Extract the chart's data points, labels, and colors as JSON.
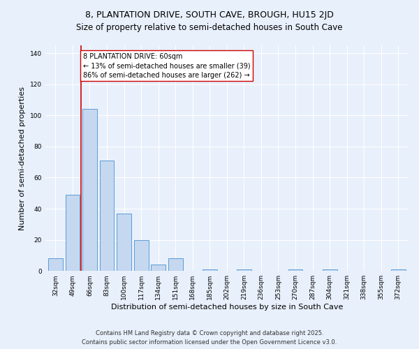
{
  "title": "8, PLANTATION DRIVE, SOUTH CAVE, BROUGH, HU15 2JD",
  "subtitle": "Size of property relative to semi-detached houses in South Cave",
  "xlabel": "Distribution of semi-detached houses by size in South Cave",
  "ylabel": "Number of semi-detached properties",
  "categories": [
    "32sqm",
    "49sqm",
    "66sqm",
    "83sqm",
    "100sqm",
    "117sqm",
    "134sqm",
    "151sqm",
    "168sqm",
    "185sqm",
    "202sqm",
    "219sqm",
    "236sqm",
    "253sqm",
    "270sqm",
    "287sqm",
    "304sqm",
    "321sqm",
    "338sqm",
    "355sqm",
    "372sqm"
  ],
  "values": [
    8,
    49,
    104,
    71,
    37,
    20,
    4,
    8,
    0,
    1,
    0,
    1,
    0,
    0,
    1,
    0,
    1,
    0,
    0,
    0,
    1
  ],
  "bar_color": "#c5d8f0",
  "bar_edge_color": "#5b9bd5",
  "vline_x": 1.5,
  "vline_color": "#cc0000",
  "annotation_text": "8 PLANTATION DRIVE: 60sqm\n← 13% of semi-detached houses are smaller (39)\n86% of semi-detached houses are larger (262) →",
  "annotation_box_color": "#ffffff",
  "annotation_box_edge": "#cc0000",
  "bg_color": "#e8f0fb",
  "plot_bg_color": "#e8f0fb",
  "grid_color": "#ffffff",
  "footer": "Contains HM Land Registry data © Crown copyright and database right 2025.\nContains public sector information licensed under the Open Government Licence v3.0.",
  "ylim": [
    0,
    145
  ],
  "title_fontsize": 9,
  "subtitle_fontsize": 8.5,
  "ylabel_fontsize": 8,
  "xlabel_fontsize": 8,
  "tick_fontsize": 6.5,
  "annotation_fontsize": 7,
  "footer_fontsize": 6
}
